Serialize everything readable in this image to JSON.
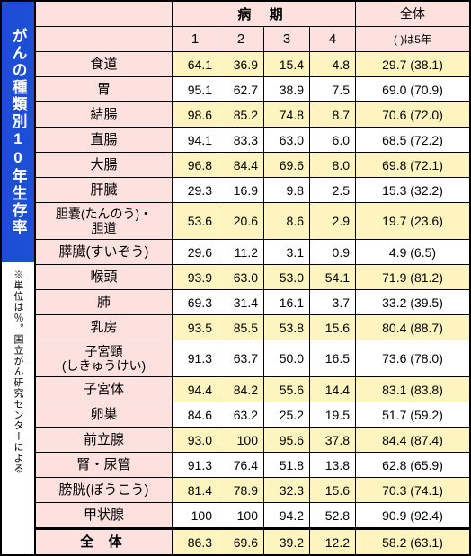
{
  "title": "がんの種類別10年生存率",
  "note": "※単位は％。国立がん研究センターによる",
  "header": {
    "stage_label": "病 期",
    "total_label_1": "全体",
    "total_label_2": "( )は5年",
    "stages": [
      "1",
      "2",
      "3",
      "4"
    ]
  },
  "rows": [
    {
      "name": "食道",
      "tall": false,
      "s": [
        "64.1",
        "36.9",
        "15.4",
        "4.8"
      ],
      "t": "29.7 (38.1)",
      "shade": true
    },
    {
      "name": "胃",
      "tall": false,
      "s": [
        "95.1",
        "62.7",
        "38.9",
        "7.5"
      ],
      "t": "69.0 (70.9)",
      "shade": false
    },
    {
      "name": "結腸",
      "tall": false,
      "s": [
        "98.6",
        "85.2",
        "74.8",
        "8.7"
      ],
      "t": "70.6 (72.0)",
      "shade": true
    },
    {
      "name": "直腸",
      "tall": false,
      "s": [
        "94.1",
        "83.3",
        "63.0",
        "6.0"
      ],
      "t": "68.5 (72.2)",
      "shade": false
    },
    {
      "name": "大腸",
      "tall": false,
      "s": [
        "96.8",
        "84.4",
        "69.6",
        "8.0"
      ],
      "t": "69.8 (72.1)",
      "shade": true
    },
    {
      "name": "肝臓",
      "tall": false,
      "s": [
        "29.3",
        "16.9",
        "9.8",
        "2.5"
      ],
      "t": "15.3 (32.2)",
      "shade": false
    },
    {
      "name": "胆嚢(たんのう)・\n胆道",
      "tall": true,
      "s": [
        "53.6",
        "20.6",
        "8.6",
        "2.9"
      ],
      "t": "19.7 (23.6)",
      "shade": true
    },
    {
      "name": "膵臓(すいぞう)",
      "tall": false,
      "s": [
        "29.6",
        "11.2",
        "3.1",
        "0.9"
      ],
      "t": "4.9  (6.5)",
      "shade": false
    },
    {
      "name": "喉頭",
      "tall": false,
      "s": [
        "93.9",
        "63.0",
        "53.0",
        "54.1"
      ],
      "t": "71.9 (81.2)",
      "shade": true
    },
    {
      "name": "肺",
      "tall": false,
      "s": [
        "69.3",
        "31.4",
        "16.1",
        "3.7"
      ],
      "t": "33.2 (39.5)",
      "shade": false
    },
    {
      "name": "乳房",
      "tall": false,
      "s": [
        "93.5",
        "85.5",
        "53.8",
        "15.6"
      ],
      "t": "80.4 (88.7)",
      "shade": true
    },
    {
      "name": "子宮頸\n(しきゅうけい)",
      "tall": true,
      "s": [
        "91.3",
        "63.7",
        "50.0",
        "16.5"
      ],
      "t": "73.6 (78.0)",
      "shade": false
    },
    {
      "name": "子宮体",
      "tall": false,
      "s": [
        "94.4",
        "84.2",
        "55.6",
        "14.4"
      ],
      "t": "83.1 (83.8)",
      "shade": true
    },
    {
      "name": "卵巣",
      "tall": false,
      "s": [
        "84.6",
        "63.2",
        "25.2",
        "19.5"
      ],
      "t": "51.7 (59.2)",
      "shade": false
    },
    {
      "name": "前立腺",
      "tall": false,
      "s": [
        "93.0",
        "100",
        "95.6",
        "37.8"
      ],
      "t": "84.4 (87.4)",
      "shade": true
    },
    {
      "name": "腎・尿管",
      "tall": false,
      "s": [
        "91.3",
        "76.4",
        "51.8",
        "13.8"
      ],
      "t": "62.8 (65.9)",
      "shade": false
    },
    {
      "name": "膀胱(ぼうこう)",
      "tall": false,
      "s": [
        "81.4",
        "78.9",
        "32.3",
        "15.6"
      ],
      "t": "70.3 (74.1)",
      "shade": true
    },
    {
      "name": "甲状腺",
      "tall": false,
      "s": [
        "100",
        "100",
        "94.2",
        "52.8"
      ],
      "t": "90.9 (92.4)",
      "shade": false
    }
  ],
  "total_row": {
    "name": "全 体",
    "s": [
      "86.3",
      "69.6",
      "39.2",
      "12.2"
    ],
    "t": "58.2 (63.1)"
  },
  "colors": {
    "title_bg": "#1c4fd6",
    "title_fg": "#ffffff",
    "header_bg": "#fde1df",
    "row_alt_bg": "#fdf4bf",
    "row_bg": "#ffffff",
    "border": "#000000"
  }
}
